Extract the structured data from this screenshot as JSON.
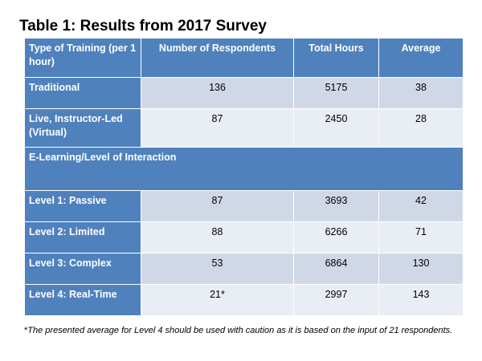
{
  "title": "Table 1: Results from 2017 Survey",
  "colors": {
    "header_bg": "#4f81bd",
    "row_dark": "#d0d8e8",
    "row_light": "#e9edf4"
  },
  "table": {
    "headers": {
      "training": "Type of Training (per 1 hour)",
      "respondents": "Number of Respondents",
      "total_hours": "Total Hours",
      "average": "Average"
    },
    "rows": [
      {
        "label": "Traditional",
        "respondents": "136",
        "total_hours": "5175",
        "average": "38"
      },
      {
        "label": "Live, Instructor-Led (Virtual)",
        "respondents": "87",
        "total_hours": "2450",
        "average": "28"
      }
    ],
    "section_label": "E-Learning/Level of Interaction",
    "elearning_rows": [
      {
        "label": "Level 1: Passive",
        "respondents": "87",
        "total_hours": "3693",
        "average": "42"
      },
      {
        "label": "Level 2: Limited",
        "respondents": "88",
        "total_hours": "6266",
        "average": "71"
      },
      {
        "label": "Level 3: Complex",
        "respondents": "53",
        "total_hours": "6864",
        "average": "130"
      },
      {
        "label": "Level 4: Real-Time",
        "respondents": "21*",
        "total_hours": "2997",
        "average": "143"
      }
    ]
  },
  "footnote": {
    "marker": "*",
    "text": "The presented average for Level 4 should be used with caution as it is based on the input of 21 respondents."
  }
}
